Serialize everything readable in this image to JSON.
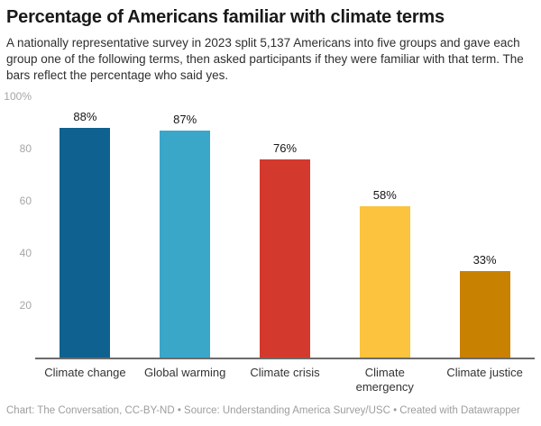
{
  "header": {
    "title": "Percentage of Americans familiar with climate terms",
    "description": "A nationally representative survey in 2023 split 5,137 Americans into five groups and gave each group one of the following terms, then asked participants if they were familiar with that term. The bars reflect the percentage who said yes."
  },
  "chart_data": {
    "type": "bar",
    "title": "Percentage of Americans familiar with climate terms",
    "categories": [
      "Climate change",
      "Global warming",
      "Climate crisis",
      "Climate emergency",
      "Climate justice"
    ],
    "values": [
      88,
      87,
      76,
      58,
      33
    ],
    "value_labels": [
      "88%",
      "87%",
      "76%",
      "58%",
      "33%"
    ],
    "bar_colors": [
      "#0f6290",
      "#3aa7c9",
      "#d4392d",
      "#fcc33e",
      "#c98102"
    ],
    "xlabel": "",
    "ylabel": "",
    "ylim": [
      0,
      100
    ],
    "yticks": [
      {
        "value": 100,
        "label": "100%"
      },
      {
        "value": 80,
        "label": "80"
      },
      {
        "value": 60,
        "label": "60"
      },
      {
        "value": 40,
        "label": "40"
      },
      {
        "value": 20,
        "label": "20"
      }
    ],
    "grid": false,
    "legend": "none"
  },
  "footer": {
    "text": "Chart: The Conversation, CC-BY-ND • Source: Understanding America Survey/USC • Created with Datawrapper"
  }
}
